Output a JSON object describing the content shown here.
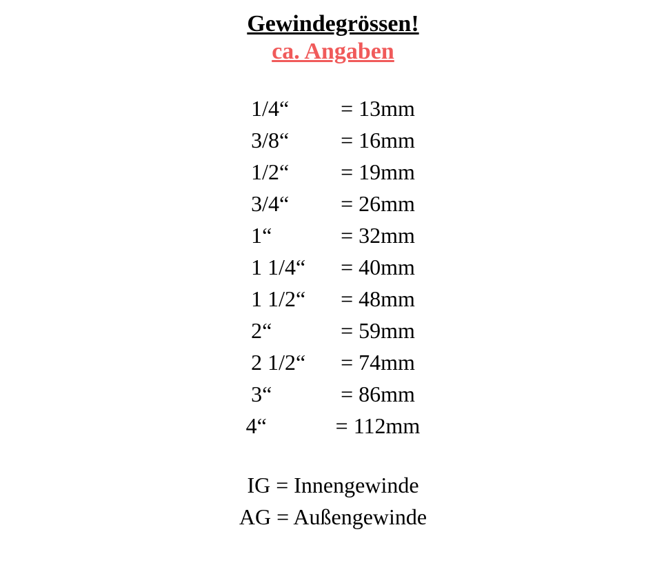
{
  "title": "Gewindegrössen!",
  "subtitle": "ca. Angaben",
  "subtitle_color": "#f05a5a",
  "text_color": "#000000",
  "background_color": "#ffffff",
  "font_family": "Georgia, 'Times New Roman', Times, serif",
  "title_fontsize": 34,
  "row_fontsize": 32,
  "sizes": [
    {
      "inch": "1/4“",
      "mm": "13mm"
    },
    {
      "inch": "3/8“",
      "mm": "16mm"
    },
    {
      "inch": "1/2“",
      "mm": "19mm"
    },
    {
      "inch": "3/4“",
      "mm": "26mm"
    },
    {
      "inch": "1“",
      "mm": "32mm"
    },
    {
      "inch": "1 1/4“",
      "mm": "40mm"
    },
    {
      "inch": "1 1/2“",
      "mm": "48mm"
    },
    {
      "inch": "2“",
      "mm": "59mm"
    },
    {
      "inch": "2 1/2“",
      "mm": "74mm"
    },
    {
      "inch": "3“",
      "mm": "86mm"
    },
    {
      "inch": "4“",
      "mm": "112mm"
    }
  ],
  "legend": [
    "IG = Innengewinde",
    "AG = Außengewinde"
  ]
}
